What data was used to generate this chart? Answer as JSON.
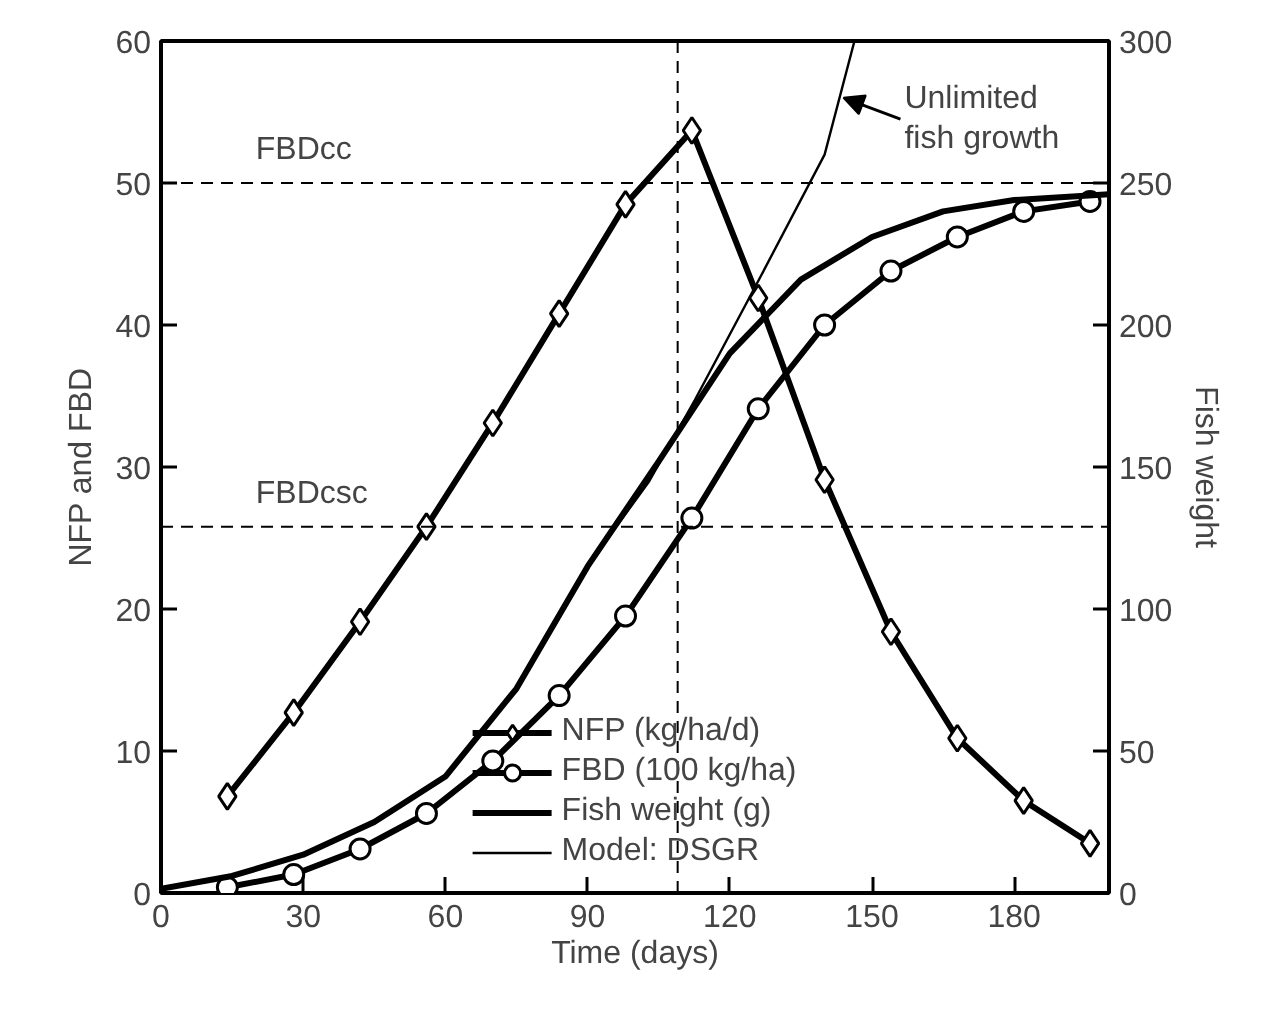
{
  "chart_data": {
    "type": "line",
    "xlabel": "Time (days)",
    "ylabel": "NFP and FBD",
    "y2label": "Fish weight",
    "xlim": [
      0,
      200
    ],
    "xticks": [
      0,
      30,
      60,
      90,
      120,
      150,
      180
    ],
    "ylim": [
      0,
      60
    ],
    "yticks": [
      0,
      10,
      20,
      30,
      40,
      50,
      60
    ],
    "y2lim": [
      0,
      300
    ],
    "y2ticks": [
      0,
      50,
      100,
      150,
      200,
      250,
      300
    ],
    "grid": false,
    "legend": "bottom",
    "series": [
      {
        "name": "NFP (kg/ha/d)",
        "color": "#000000",
        "marker": "diamond",
        "x": [
          14,
          28,
          42,
          56,
          70,
          84,
          98,
          112,
          126,
          140,
          154,
          168,
          182,
          196
        ],
        "values": [
          6.8,
          12.7,
          19.1,
          25.8,
          33.1,
          40.8,
          48.5,
          53.7,
          41.9,
          29.1,
          18.4,
          10.9,
          6.5,
          3.5
        ]
      },
      {
        "name": "FBD (100 kg/ha)",
        "color": "#000000",
        "marker": "circle",
        "x": [
          14,
          28,
          42,
          56,
          70,
          84,
          98,
          112,
          126,
          140,
          154,
          168,
          182,
          196
        ],
        "values": [
          0.4,
          1.3,
          3.1,
          5.6,
          9.3,
          13.9,
          19.5,
          26.4,
          34.1,
          40.0,
          43.8,
          46.2,
          48.0,
          48.7
        ]
      },
      {
        "name": "Fish weight (g)",
        "color": "#000000",
        "marker": "none",
        "axis": "y2",
        "x": [
          0,
          15,
          30,
          45,
          60,
          75,
          90,
          105,
          120,
          135,
          150,
          165,
          180,
          200
        ],
        "values": [
          1.5,
          6,
          13.5,
          25,
          41,
          72,
          115,
          152,
          190,
          216,
          231,
          240,
          244,
          246
        ]
      },
      {
        "name": "Model: DSGR",
        "color": "#000000",
        "marker": "none",
        "axis": "y2",
        "x": [
          0,
          15,
          30,
          45,
          60,
          75,
          90,
          103,
          112.6,
          126,
          140,
          146.3
        ],
        "values": [
          1.5,
          6,
          13.5,
          25,
          41,
          72,
          115,
          145,
          173.5,
          215.5,
          260,
          300
        ]
      }
    ],
    "ref_lines": [
      {
        "axis": "y",
        "value": 50,
        "label": "FBDcc",
        "line_style": "dashed"
      },
      {
        "axis": "y",
        "value": 25.8,
        "label": "FBDcsc",
        "line_style": "dashed"
      },
      {
        "axis": "x",
        "value": 109,
        "label": null,
        "line_style": "dashed"
      }
    ],
    "annotations": [
      {
        "text": "Unlimited\nfish growth",
        "x": 144,
        "y": 56
      }
    ]
  }
}
